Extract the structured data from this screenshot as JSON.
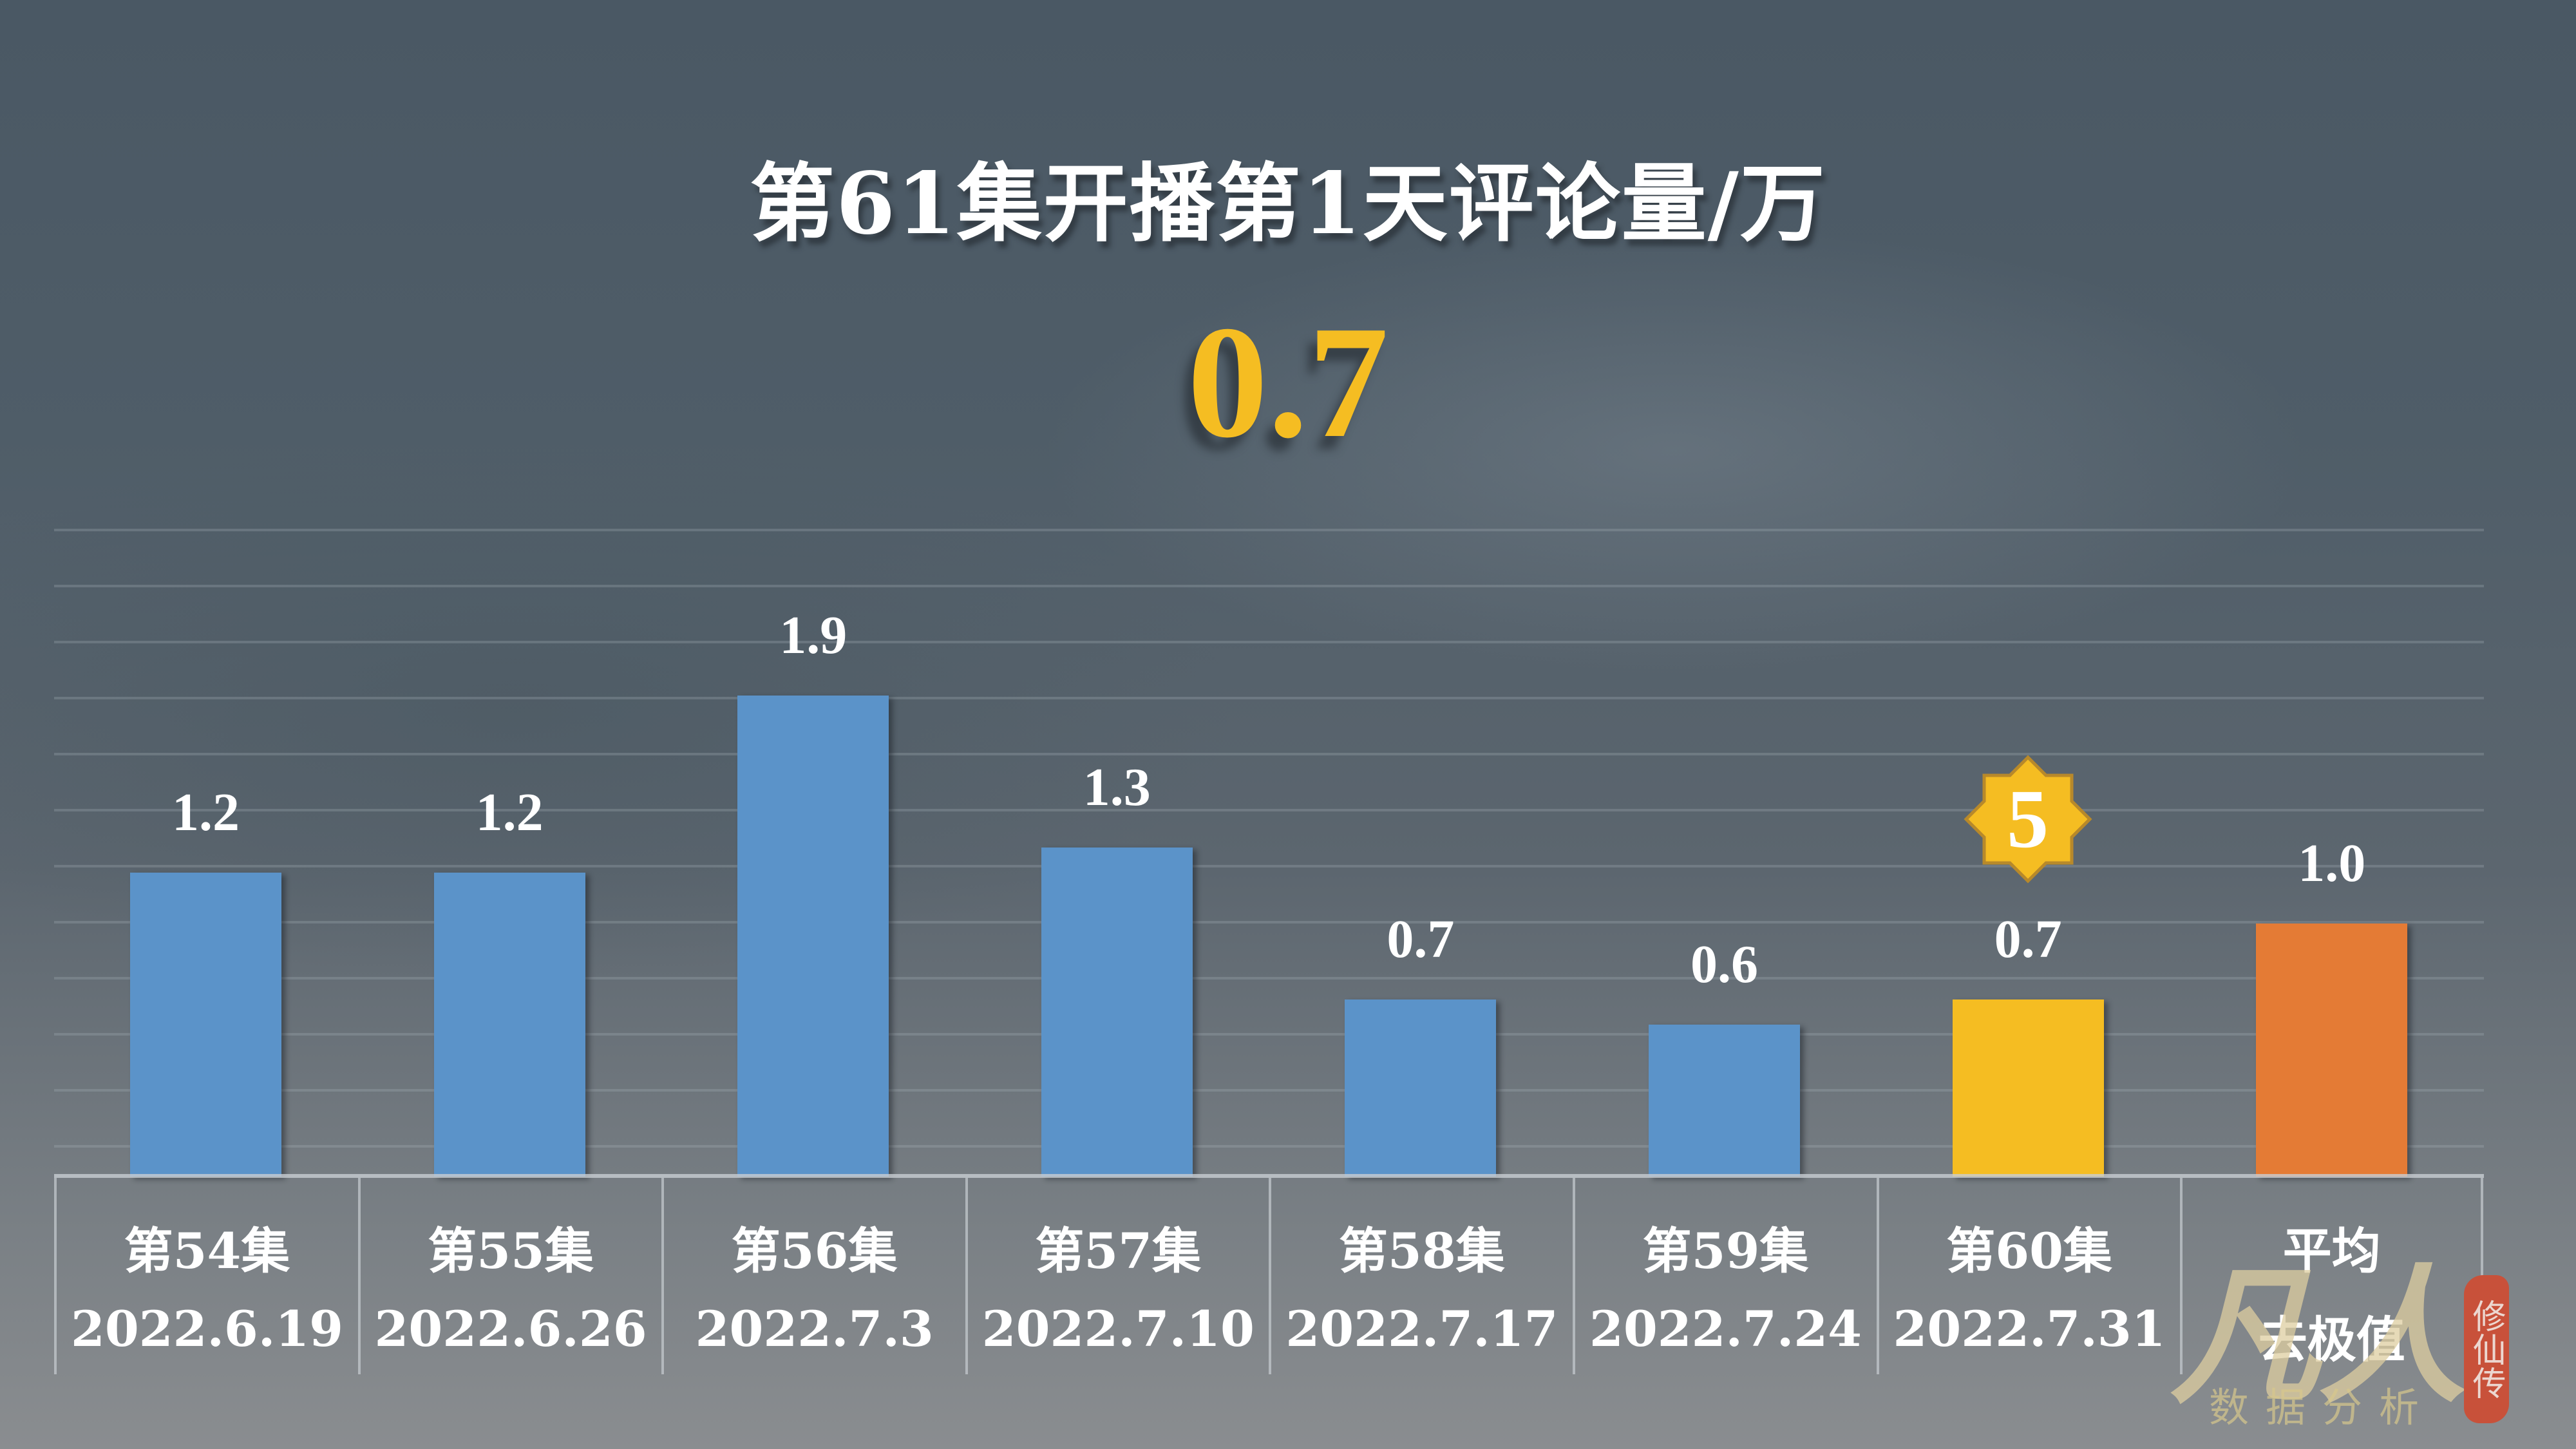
{
  "title": "第61集开播第1天评论量/万",
  "headline_value": "0.7",
  "colors": {
    "blue": "#5b93c9",
    "highlight": "#f5bd22",
    "average": "#e47b35",
    "badge_fill": "#f5bd22",
    "badge_stroke": "#b8892a"
  },
  "badge": {
    "text": "5",
    "target_index": 6
  },
  "columns": [
    {
      "episode": "第54集",
      "date": "2022.6.19",
      "value": 1.2,
      "label": "1.2",
      "color": "#5b93c9"
    },
    {
      "episode": "第55集",
      "date": "2022.6.26",
      "value": 1.2,
      "label": "1.2",
      "color": "#5b93c9"
    },
    {
      "episode": "第56集",
      "date": "2022.7.3",
      "value": 1.9,
      "label": "1.9",
      "color": "#5b93c9"
    },
    {
      "episode": "第57集",
      "date": "2022.7.10",
      "value": 1.3,
      "label": "1.3",
      "color": "#5b93c9"
    },
    {
      "episode": "第58集",
      "date": "2022.7.17",
      "value": 0.7,
      "label": "0.7",
      "color": "#5b93c9"
    },
    {
      "episode": "第59集",
      "date": "2022.7.24",
      "value": 0.6,
      "label": "0.6",
      "color": "#5b93c9"
    },
    {
      "episode": "第60集",
      "date": "2022.7.31",
      "value": 0.7,
      "label": "0.7",
      "color": "#f5bd22"
    },
    {
      "episode": "平均",
      "date": "去极值",
      "value": 1.0,
      "label": "1.0",
      "color": "#e47b35"
    }
  ],
  "watermark": {
    "main": "凡人",
    "sub": "数据分析",
    "seal": "修仙传"
  },
  "chart_data": {
    "type": "bar",
    "title": "第61集开播第1天评论量/万",
    "subtitle": "0.7",
    "categories": [
      "第54集 2022.6.19",
      "第55集 2022.6.26",
      "第56集 2022.7.3",
      "第57集 2022.7.10",
      "第58集 2022.7.17",
      "第59集 2022.7.24",
      "第60集 2022.7.31",
      "平均 去极值"
    ],
    "values": [
      1.2,
      1.2,
      1.9,
      1.3,
      0.7,
      0.6,
      0.7,
      1.0
    ],
    "bar_colors": [
      "#5b93c9",
      "#5b93c9",
      "#5b93c9",
      "#5b93c9",
      "#5b93c9",
      "#5b93c9",
      "#f5bd22",
      "#e47b35"
    ],
    "xlabel": "",
    "ylabel": "评论量/万",
    "ylim": [
      0,
      2.6
    ],
    "grid": true,
    "legend": "none",
    "annotations": [
      {
        "category_index": 6,
        "text": "5",
        "shape": "8-point star badge"
      }
    ],
    "data_labels": [
      "1.2",
      "1.2",
      "1.9",
      "1.3",
      "0.7",
      "0.6",
      "0.7",
      "1.0"
    ]
  }
}
